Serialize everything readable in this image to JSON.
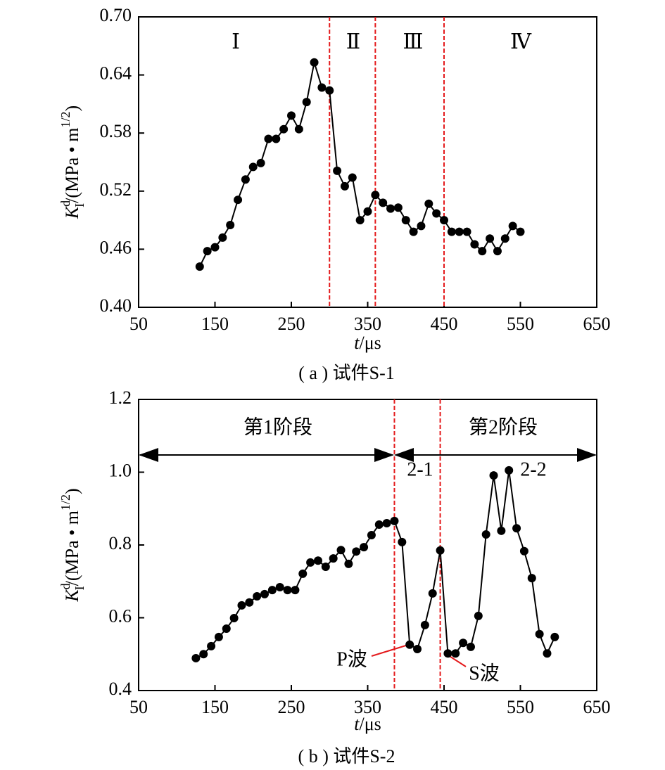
{
  "chart_data": [
    {
      "type": "line",
      "color": "#000000",
      "x": [
        130,
        140,
        150,
        160,
        170,
        180,
        190,
        200,
        210,
        220,
        230,
        240,
        250,
        260,
        270,
        280,
        290,
        300,
        310,
        320,
        330,
        340,
        350,
        360,
        370,
        380,
        390,
        400,
        410,
        420,
        430,
        440,
        450,
        460,
        470,
        480,
        490,
        500,
        510,
        520,
        530,
        540,
        550
      ],
      "values": [
        0.442,
        0.458,
        0.462,
        0.472,
        0.485,
        0.511,
        0.532,
        0.545,
        0.549,
        0.574,
        0.574,
        0.584,
        0.598,
        0.584,
        0.612,
        0.653,
        0.627,
        0.624,
        0.541,
        0.525,
        0.534,
        0.49,
        0.499,
        0.516,
        0.508,
        0.502,
        0.503,
        0.49,
        0.478,
        0.484,
        0.507,
        0.497,
        0.49,
        0.478,
        0.478,
        0.478,
        0.465,
        0.458,
        0.471,
        0.458,
        0.471,
        0.484,
        0.478
      ],
      "xlim": [
        50,
        650
      ],
      "xticks": [
        50,
        150,
        250,
        350,
        450,
        550,
        650
      ],
      "ylim": [
        0.4,
        0.7
      ],
      "yticks": [
        {
          "value": 0.4,
          "label": "0.40"
        },
        0.46,
        0.52,
        0.58,
        0.64,
        {
          "value": 0.7,
          "label": "0.70"
        }
      ],
      "vlines": [
        300,
        360,
        450
      ],
      "vline_color": "#e41a1c",
      "annotations": [
        "Ⅰ",
        "Ⅱ",
        "Ⅲ",
        "Ⅳ"
      ],
      "ylabel_parts": [
        "K",
        "d",
        "I",
        "/(MPa • m",
        "1/2",
        ")"
      ],
      "xlabel_parts": [
        "t",
        "/μs"
      ],
      "caption": "( a ) 试件S-1"
    },
    {
      "type": "line",
      "color": "#000000",
      "x": [
        125,
        135,
        145,
        155,
        165,
        175,
        185,
        195,
        205,
        215,
        225,
        235,
        245,
        255,
        265,
        275,
        285,
        295,
        305,
        315,
        325,
        335,
        345,
        355,
        365,
        375,
        385,
        395,
        405,
        415,
        425,
        435,
        445,
        455,
        465,
        475,
        485,
        495,
        505,
        515,
        525,
        535,
        545,
        555,
        565,
        575,
        585,
        595
      ],
      "values": [
        0.489,
        0.5,
        0.522,
        0.547,
        0.57,
        0.599,
        0.634,
        0.642,
        0.659,
        0.665,
        0.676,
        0.684,
        0.676,
        0.676,
        0.721,
        0.752,
        0.757,
        0.74,
        0.763,
        0.786,
        0.748,
        0.782,
        0.794,
        0.827,
        0.856,
        0.86,
        0.866,
        0.808,
        0.526,
        0.514,
        0.58,
        0.667,
        0.785,
        0.502,
        0.502,
        0.531,
        0.52,
        0.605,
        0.829,
        0.991,
        0.839,
        1.005,
        0.846,
        0.783,
        0.709,
        0.555,
        0.502,
        0.547
      ],
      "xlim": [
        50,
        650
      ],
      "xticks": [
        50,
        150,
        250,
        350,
        450,
        550,
        650
      ],
      "ylim": [
        0.4,
        1.2
      ],
      "yticks": [
        0.4,
        0.6,
        0.8,
        {
          "value": 1,
          "label": "1.0"
        },
        1.2
      ],
      "vlines": [
        385,
        445
      ],
      "vline_color": "#e41a1c",
      "annotations": [
        "第1阶段",
        "第2阶段",
        "2-1",
        "2-2",
        "P波",
        "S波"
      ],
      "ylabel_parts": [
        "K",
        "d",
        "I",
        "/(MPa • m",
        "1/2",
        ")"
      ],
      "xlabel_parts": [
        "t",
        "/μs"
      ],
      "caption": "( b ) 试件S-2"
    }
  ]
}
